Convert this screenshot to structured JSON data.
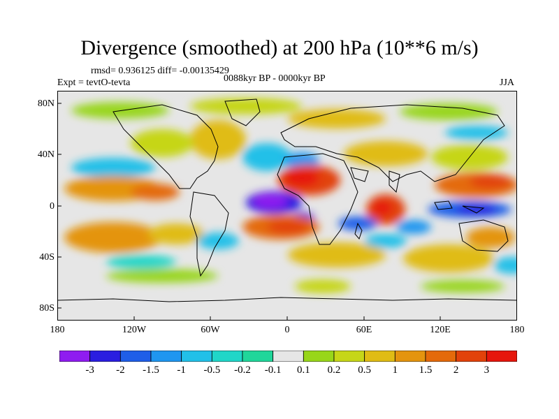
{
  "title": "Divergence (smoothed) at 200 hPa (10**6 m/s)",
  "stats": "rmsd= 0.936125 diff= -0.00135429",
  "experiment": "Expt = tevtO-tevta",
  "period": "0088kyr BP - 0000kyr BP",
  "season": "JJA",
  "map": {
    "projection": "cylindrical-equidistant",
    "lon_range": [
      -180,
      180
    ],
    "lat_range": [
      -90,
      90
    ],
    "x_ticks": [
      "180",
      "120W",
      "60W",
      "0",
      "60E",
      "120E",
      "180"
    ],
    "y_ticks": [
      "80N",
      "40N",
      "0",
      "40S",
      "80S"
    ]
  },
  "colorbar": {
    "colors": [
      "#8f1cf0",
      "#2a1ee0",
      "#1f5ee8",
      "#1f96f0",
      "#22c0e8",
      "#20d6c8",
      "#20d69a",
      "#e6e6e6",
      "#98d61a",
      "#c6d618",
      "#e0bc14",
      "#e4940e",
      "#e46a0a",
      "#e2420a",
      "#e6160c"
    ],
    "labels": [
      "-3",
      "-2",
      "-1.5",
      "-1",
      "-0.5",
      "-0.2",
      "-0.1",
      "0.1",
      "0.2",
      "0.5",
      "1",
      "1.5",
      "2",
      "3"
    ]
  }
}
